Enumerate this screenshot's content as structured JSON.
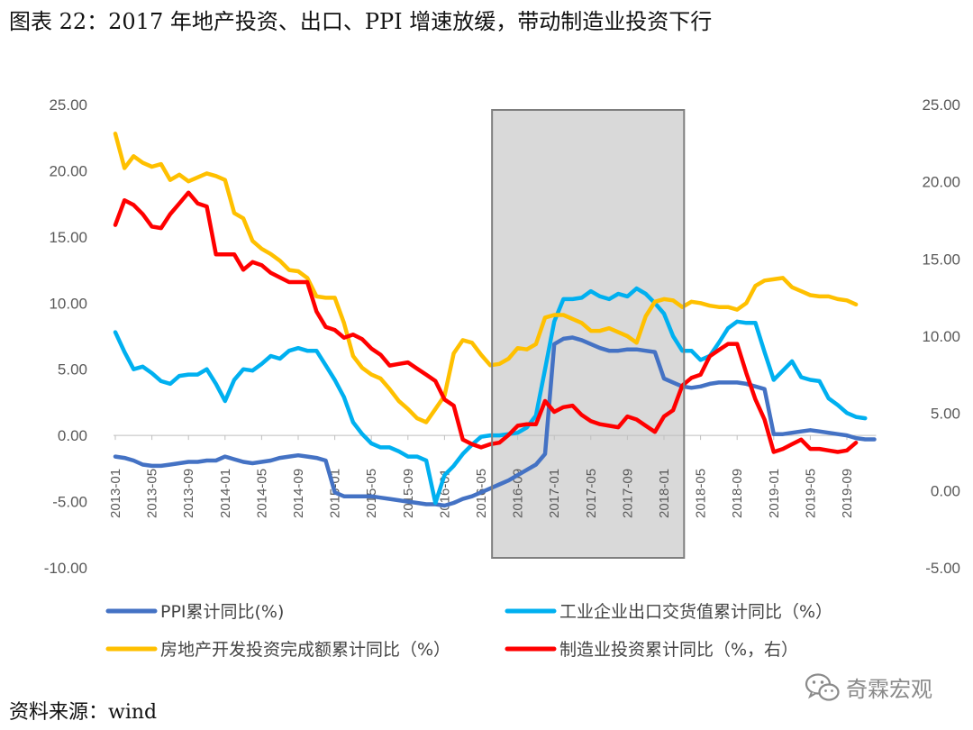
{
  "title": "图表 22：2017 年地产投资、出口、PPI 增速放缓，带动制造业投资下行",
  "source": "资料来源：wind",
  "watermark": {
    "text": "奇霖宏观",
    "icon": "wechat-icon"
  },
  "colors": {
    "ppi": "#4472C4",
    "export": "#00B0F0",
    "realestate": "#FFC000",
    "manufacturing": "#FF0000",
    "shade_fill": "#D9D9D9",
    "shade_border": "#7F7F7F"
  },
  "chart_data": {
    "type": "line",
    "left_axis": {
      "ylim": [
        -10,
        25
      ],
      "ticks": [
        "25.00",
        "20.00",
        "15.00",
        "10.00",
        "5.00",
        "0.00",
        "-5.00",
        "-10.00"
      ]
    },
    "right_axis": {
      "ylim": [
        -5,
        25
      ],
      "ticks": [
        "25.00",
        "20.00",
        "15.00",
        "10.00",
        "5.00",
        "0.00",
        "-5.00"
      ]
    },
    "x_tick_labels": [
      "2013-01",
      "2013-05",
      "2013-09",
      "2014-01",
      "2014-05",
      "2014-09",
      "2015-01",
      "2015-05",
      "2015-09",
      "2016-01",
      "2016-05",
      "2016-09",
      "2017-01",
      "2017-05",
      "2017-09",
      "2018-01",
      "2018-05",
      "2018-09",
      "2019-01",
      "2019-05",
      "2019-09"
    ],
    "x_start": "2013-01",
    "shaded_range": [
      "2016-06",
      "2018-03"
    ],
    "series": [
      {
        "name": "PPI累计同比(%)",
        "key": "ppi",
        "axis": "left",
        "start": "2013-01",
        "values": [
          -1.6,
          -1.7,
          -1.9,
          -2.2,
          -2.3,
          -2.3,
          -2.2,
          -2.1,
          -2.0,
          -2.0,
          -1.9,
          -1.9,
          -1.6,
          -1.8,
          -2.0,
          -2.1,
          -2.0,
          -1.9,
          -1.7,
          -1.6,
          -1.5,
          -1.6,
          -1.7,
          -1.9,
          -4.3,
          -4.6,
          -4.6,
          -4.6,
          -4.6,
          -4.7,
          -4.8,
          -4.9,
          -5.0,
          -5.1,
          -5.2,
          -5.2,
          -5.3,
          -5.1,
          -4.8,
          -4.6,
          -4.3,
          -4.0,
          -3.7,
          -3.4,
          -3.0,
          -2.6,
          -2.2,
          -1.4,
          6.9,
          7.3,
          7.4,
          7.2,
          6.9,
          6.6,
          6.4,
          6.4,
          6.5,
          6.5,
          6.4,
          6.3,
          4.3,
          4.0,
          3.7,
          3.6,
          3.7,
          3.9,
          4.0,
          4.0,
          4.0,
          3.9,
          3.7,
          3.5,
          0.1,
          0.1,
          0.2,
          0.3,
          0.4,
          0.3,
          0.2,
          0.1,
          0.0,
          -0.2,
          -0.3,
          -0.3
        ]
      },
      {
        "name": "工业企业出口交货值累计同比（%）",
        "key": "export",
        "axis": "left",
        "start": "2013-01",
        "values": [
          7.8,
          6.3,
          5.0,
          5.2,
          4.7,
          4.1,
          3.9,
          4.5,
          4.6,
          4.6,
          5.0,
          3.9,
          2.6,
          4.2,
          5.0,
          4.9,
          5.4,
          6.0,
          5.8,
          6.4,
          6.6,
          6.4,
          6.4,
          5.3,
          4.2,
          2.9,
          1.0,
          0.1,
          -0.6,
          -0.9,
          -0.9,
          -1.2,
          -1.6,
          -1.6,
          -1.9,
          -5.1,
          -3.0,
          -2.3,
          -1.4,
          -0.7,
          -0.1,
          0.0,
          0.0,
          0.1,
          0.2,
          0.6,
          1.5,
          5.0,
          8.6,
          10.3,
          10.3,
          10.4,
          10.9,
          10.5,
          10.3,
          10.7,
          10.5,
          11.1,
          10.7,
          10.0,
          9.2,
          7.5,
          6.4,
          6.4,
          5.7,
          6.0,
          7.0,
          8.1,
          8.6,
          8.5,
          8.5,
          6.3,
          4.2,
          4.9,
          5.6,
          4.4,
          4.2,
          4.1,
          2.8,
          2.3,
          1.7,
          1.4,
          1.3
        ]
      },
      {
        "name": "房地产开发投资完成额累计同比（%）",
        "key": "realestate",
        "axis": "left",
        "start": "2013-01",
        "values": [
          22.8,
          20.2,
          21.1,
          20.6,
          20.3,
          20.5,
          19.3,
          19.7,
          19.2,
          19.5,
          19.8,
          19.6,
          19.3,
          16.8,
          16.4,
          14.7,
          14.1,
          13.7,
          13.2,
          12.5,
          12.4,
          11.9,
          10.5,
          10.4,
          10.4,
          8.5,
          6.0,
          5.1,
          4.6,
          4.3,
          3.5,
          2.6,
          2.0,
          1.3,
          1.0,
          2.0,
          3.0,
          6.2,
          7.2,
          7.0,
          6.1,
          5.3,
          5.4,
          5.8,
          6.6,
          6.5,
          6.9,
          8.9,
          9.1,
          9.1,
          8.8,
          8.5,
          7.9,
          7.9,
          8.1,
          7.8,
          7.5,
          7.0,
          9.0,
          10.1,
          10.3,
          10.2,
          9.7,
          10.1,
          10.0,
          9.8,
          9.7,
          9.7,
          9.5,
          10.0,
          11.3,
          11.7,
          11.8,
          11.9,
          11.2,
          10.9,
          10.6,
          10.5,
          10.5,
          10.3,
          10.2,
          9.9
        ]
      },
      {
        "name": "制造业投资累计同比（%，右）",
        "key": "manufacturing",
        "axis": "right",
        "start": "2013-01",
        "values": [
          17.2,
          18.8,
          18.5,
          17.9,
          17.1,
          17.0,
          17.9,
          18.6,
          19.3,
          18.6,
          18.4,
          15.3,
          15.3,
          15.3,
          14.3,
          14.8,
          14.6,
          14.1,
          13.8,
          13.5,
          13.5,
          13.5,
          11.6,
          10.6,
          10.4,
          9.9,
          10.1,
          9.8,
          9.2,
          8.8,
          8.1,
          8.2,
          8.3,
          7.9,
          7.5,
          7.1,
          5.9,
          5.5,
          3.3,
          3.0,
          2.8,
          3.0,
          3.1,
          3.6,
          4.2,
          4.3,
          4.3,
          5.8,
          5.1,
          5.4,
          5.5,
          4.9,
          4.5,
          4.3,
          4.2,
          4.1,
          4.8,
          4.6,
          4.2,
          3.8,
          4.8,
          5.2,
          6.8,
          7.3,
          7.5,
          8.7,
          9.1,
          9.5,
          9.5,
          7.6,
          5.9,
          4.6,
          2.5,
          2.7,
          3.0,
          3.3,
          2.7,
          2.7,
          2.6,
          2.5,
          2.6,
          3.1
        ]
      }
    ]
  }
}
